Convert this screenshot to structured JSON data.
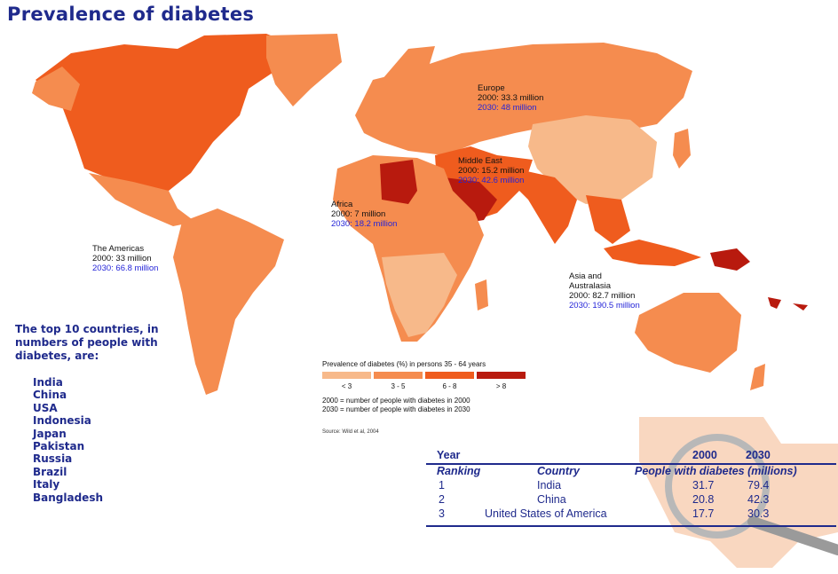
{
  "title": "Prevalence of diabetes",
  "colors": {
    "title": "#1f2a8c",
    "highlight_2030": "#2424d8",
    "lt3": "#f7b98a",
    "3to5": "#f58c4f",
    "6to8": "#ef5c1e",
    "gt8": "#b81a0e"
  },
  "regions": {
    "americas": {
      "name": "The Americas",
      "v2000": "2000: 33 million",
      "v2030": "2030: 66.8 million"
    },
    "europe": {
      "name": "Europe",
      "v2000": "2000: 33.3 million",
      "v2030": "2030: 48 million"
    },
    "middle_east": {
      "name": "Middle East",
      "v2000": "2000: 15.2 million",
      "v2030": "2030: 42.6 million"
    },
    "africa": {
      "name": "Africa",
      "v2000": "2000:   7 million",
      "v2030": "2030: 18.2 million"
    },
    "asia": {
      "name_line1": "Asia and",
      "name_line2": "Australasia",
      "v2000": "2000:   82.7 million",
      "v2030": "2030: 190.5 million"
    }
  },
  "top10": {
    "heading": "The top 10 countries, in numbers of people with diabetes, are:",
    "countries": [
      "India",
      "China",
      "USA",
      "Indonesia",
      "Japan",
      "Pakistan",
      "Russia",
      "Brazil",
      "Italy",
      "Bangladesh"
    ]
  },
  "legend": {
    "title": "Prevalence of diabetes (%)  in persons 35 - 64 years",
    "labels": [
      "< 3",
      "3 - 5",
      "6 - 8",
      "> 8"
    ],
    "note_2000": "2000 = number of people with diabetes in 2000",
    "note_2030": "2030 = number of people with diabetes in 2030",
    "source": "Source: Wild et al, 2004"
  },
  "table": {
    "year_label": "Year",
    "years": [
      "2000",
      "2030"
    ],
    "headers": {
      "ranking": "Ranking",
      "country": "Country",
      "people": "People with diabetes (millions)"
    },
    "rows": [
      {
        "rank": "1",
        "country": "India",
        "v2000": "31.7",
        "v2030": "79.4"
      },
      {
        "rank": "2",
        "country": "China",
        "v2000": "20.8",
        "v2030": "42.3"
      },
      {
        "rank": "3",
        "country": "United States of America",
        "v2000": "17.7",
        "v2030": "30.3"
      }
    ]
  }
}
